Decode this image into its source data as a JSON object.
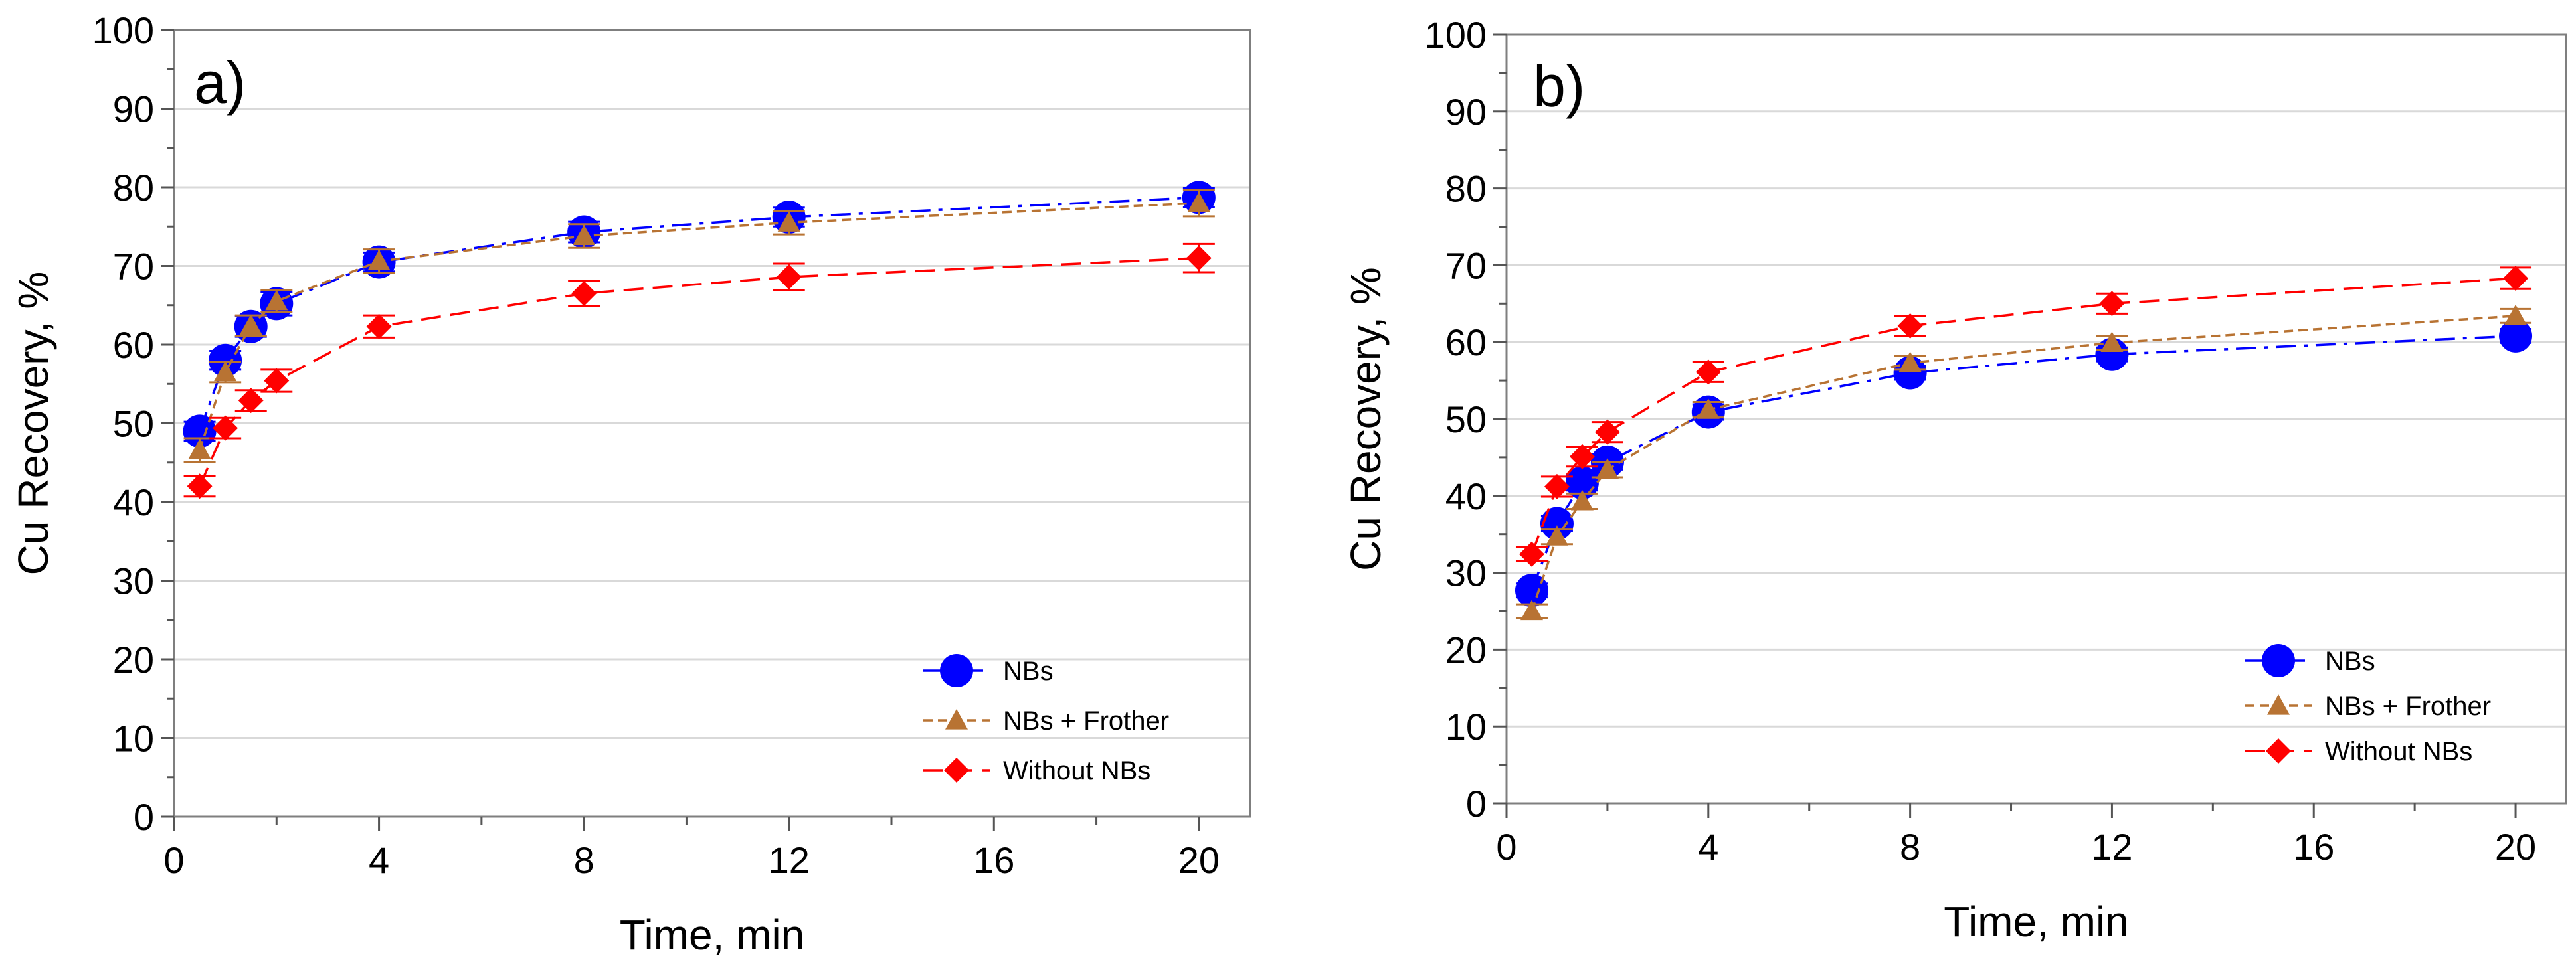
{
  "chart_data": [
    {
      "type": "line",
      "panel_label": "a)",
      "xlabel": "Time, min",
      "ylabel": "Cu Recovery, %",
      "xlim": [
        0,
        21
      ],
      "ylim": [
        0,
        100
      ],
      "xticks": [
        0,
        4,
        8,
        12,
        16,
        20
      ],
      "yticks": [
        0,
        10,
        20,
        30,
        40,
        50,
        60,
        70,
        80,
        90,
        100
      ],
      "grid": "horizontal",
      "legend_position": "bottom-right",
      "x": [
        0.5,
        1,
        1.5,
        2,
        4,
        8,
        12,
        20
      ],
      "series": [
        {
          "name": "NBs",
          "marker": "circle",
          "color": "#0000ff",
          "values": [
            49,
            58,
            62.3,
            65.2,
            70.5,
            74.3,
            76.2,
            78.7
          ],
          "errors": [
            1.2,
            1.2,
            1.3,
            1.5,
            1.2,
            1.3,
            1.2,
            1.2
          ]
        },
        {
          "name": "NBs + Frother",
          "marker": "triangle",
          "color": "#b87333",
          "values": [
            46.6,
            56.5,
            62.4,
            65.5,
            70.6,
            73.8,
            75.5,
            78
          ],
          "errors": [
            1.5,
            1.3,
            1.3,
            1.4,
            1.5,
            1.5,
            1.5,
            1.7
          ]
        },
        {
          "name": "Without NBs",
          "marker": "diamond",
          "color": "#ff0000",
          "values": [
            42,
            49.4,
            52.9,
            55.4,
            62.3,
            66.5,
            68.6,
            71
          ],
          "errors": [
            1.3,
            1.3,
            1.3,
            1.4,
            1.4,
            1.6,
            1.7,
            1.8
          ]
        }
      ]
    },
    {
      "type": "line",
      "panel_label": "b)",
      "xlabel": "Time, min",
      "ylabel": "Cu Recovery, %",
      "xlim": [
        0,
        21
      ],
      "ylim": [
        0,
        100
      ],
      "xticks": [
        0,
        4,
        8,
        12,
        16,
        20
      ],
      "yticks": [
        0,
        10,
        20,
        30,
        40,
        50,
        60,
        70,
        80,
        90,
        100
      ],
      "grid": "horizontal",
      "legend_position": "bottom-right",
      "x": [
        0.5,
        1,
        1.5,
        2,
        4,
        8,
        12,
        20
      ],
      "series": [
        {
          "name": "NBs",
          "marker": "circle",
          "color": "#0000ff",
          "values": [
            27.7,
            36.4,
            41.7,
            44.4,
            50.9,
            56,
            58.4,
            60.8
          ],
          "errors": [
            0.9,
            1.0,
            1.0,
            1.0,
            1.0,
            0.9,
            0.9,
            0.9
          ]
        },
        {
          "name": "NBs + Frother",
          "marker": "triangle",
          "color": "#b87333",
          "values": [
            25,
            34.7,
            39.3,
            43.4,
            51.2,
            57.3,
            59.9,
            63.4
          ],
          "errors": [
            0.9,
            1.0,
            1.0,
            1.0,
            1.0,
            0.9,
            0.9,
            0.9
          ]
        },
        {
          "name": "Without NBs",
          "marker": "diamond",
          "color": "#ff0000",
          "values": [
            32.4,
            41.2,
            45.1,
            48.3,
            56.1,
            62.1,
            65,
            68.3
          ],
          "errors": [
            0.9,
            1.3,
            1.3,
            1.3,
            1.3,
            1.3,
            1.3,
            1.4
          ]
        }
      ]
    }
  ]
}
